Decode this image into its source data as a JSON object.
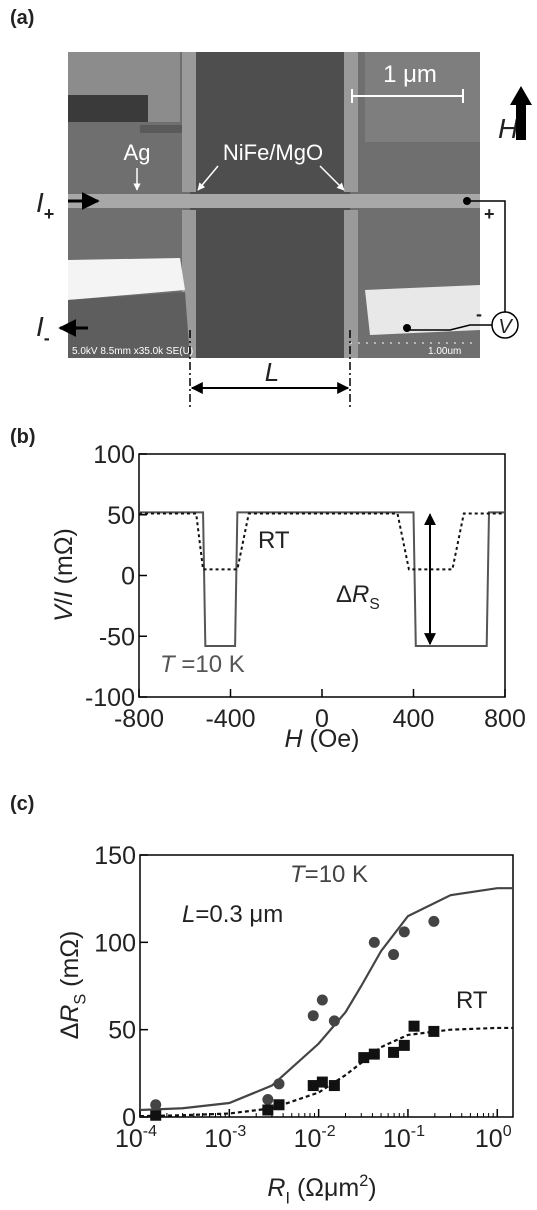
{
  "panel_a": {
    "label": "(a)",
    "scale_bar": "1 μm",
    "field": "H",
    "ferromagnet": "NiFe/MgO",
    "nonmagnet": "Ag",
    "current_plus": {
      "symbol": "I",
      "subscript": "+"
    },
    "current_minus": {
      "symbol": "I",
      "subscript": "-"
    },
    "voltage": "V",
    "voltage_plus": "+",
    "voltage_minus": "-",
    "sem_info": "5.0kV 8.5mm x35.0k SE(U)",
    "sem_scale": "1.00um",
    "separation": "L"
  },
  "chart_data": [
    {
      "type": "line",
      "panel_label": "(b)",
      "x_label": [
        {
          "text": "H",
          "italic": true
        },
        {
          "text": " (Oe)"
        }
      ],
      "y_label": [
        {
          "text": "V",
          "italic": true
        },
        {
          "text": "/"
        },
        {
          "text": "I",
          "italic": true
        },
        {
          "text": " (mΩ)"
        }
      ],
      "xlim": [
        -800,
        800
      ],
      "ylim": [
        -100,
        100
      ],
      "xticks": [
        -800,
        -400,
        0,
        400,
        800
      ],
      "yticks": [
        -100,
        -50,
        0,
        50,
        100
      ],
      "series": [
        {
          "color": "#555555",
          "dash": "none",
          "x": [
            -800,
            -520,
            -510,
            -380,
            -370,
            400,
            410,
            720,
            730,
            800
          ],
          "values": [
            52,
            52,
            -58,
            -58,
            52,
            52,
            -58,
            -58,
            52,
            52
          ]
        },
        {
          "color": "#111111",
          "dash": "3,3",
          "x": [
            -800,
            -550,
            -520,
            -370,
            -320,
            330,
            380,
            570,
            620,
            800
          ],
          "values": [
            51,
            51,
            5,
            5,
            51,
            51,
            5,
            5,
            51,
            51
          ]
        }
      ],
      "annotations": [
        {
          "parts": [
            {
              "text": "RT"
            }
          ]
        },
        {
          "parts": [
            {
              "text": "T",
              "italic": true
            },
            {
              "text": " =10 K"
            }
          ]
        },
        {
          "parts": [
            {
              "text": "Δ"
            },
            {
              "text": "R",
              "italic": true
            },
            {
              "text": "S",
              "sub": true
            }
          ]
        }
      ]
    },
    {
      "type": "scatter",
      "panel_label": "(c)",
      "x_label": [
        {
          "text": "R",
          "italic": true
        },
        {
          "text": "I",
          "sub": true
        },
        {
          "text": " (Ωμm"
        },
        {
          "text": "2",
          "sup": true
        },
        {
          "text": ")"
        }
      ],
      "y_label": [
        {
          "text": "Δ"
        },
        {
          "text": "R",
          "italic": true
        },
        {
          "text": "S",
          "sub": true
        },
        {
          "text": " (mΩ)"
        }
      ],
      "xscale": "log",
      "xlim": [
        0.0001,
        1.5
      ],
      "ylim": [
        0,
        150
      ],
      "xticks": [
        {
          "value": 0.0001,
          "label": "10",
          "exponent": "-4"
        },
        {
          "value": 0.001,
          "label": "10",
          "exponent": "-3"
        },
        {
          "value": 0.01,
          "label": "10",
          "exponent": "-2"
        },
        {
          "value": 0.1,
          "label": "10",
          "exponent": "-1"
        },
        {
          "value": 1,
          "label": "10",
          "exponent": "0"
        }
      ],
      "yticks": [
        0,
        50,
        100,
        150
      ],
      "series": [
        {
          "marker": "circle",
          "color": "#444444",
          "x": [
            0.00015,
            0.0027,
            0.0036,
            0.0087,
            0.011,
            0.015,
            0.042,
            0.069,
            0.091,
            0.195
          ],
          "values": [
            7,
            10,
            19,
            58,
            67,
            55,
            100,
            93,
            106,
            112
          ]
        },
        {
          "marker": "square",
          "color": "#111111",
          "x": [
            0.00015,
            0.0027,
            0.0036,
            0.0087,
            0.011,
            0.015,
            0.032,
            0.042,
            0.069,
            0.091,
            0.117,
            0.195
          ],
          "values": [
            1,
            4,
            7,
            18,
            20,
            18,
            34,
            36,
            37,
            41,
            52,
            49
          ]
        },
        {
          "marker": "none",
          "color": "#444444",
          "dash": "none",
          "x": [
            0.0001,
            0.0003,
            0.001,
            0.003,
            0.01,
            0.02,
            0.03,
            0.05,
            0.1,
            0.3,
            1,
            1.5
          ],
          "values": [
            4,
            5,
            8,
            18,
            42,
            60,
            75,
            95,
            115,
            127,
            131,
            131
          ]
        },
        {
          "marker": "none",
          "color": "#111111",
          "dash": "4,3",
          "x": [
            0.0001,
            0.0003,
            0.001,
            0.003,
            0.01,
            0.02,
            0.03,
            0.05,
            0.1,
            0.3,
            1,
            1.5
          ],
          "values": [
            0.5,
            1,
            2,
            5,
            14,
            24,
            31,
            40,
            47,
            50,
            51,
            51
          ]
        }
      ],
      "annotations": [
        {
          "parts": [
            {
              "text": "T",
              "italic": true
            },
            {
              "text": "=10 K"
            }
          ]
        },
        {
          "parts": [
            {
              "text": "L",
              "italic": true
            },
            {
              "text": "=0.3 μm"
            }
          ]
        },
        {
          "parts": [
            {
              "text": "RT"
            }
          ]
        }
      ]
    }
  ]
}
